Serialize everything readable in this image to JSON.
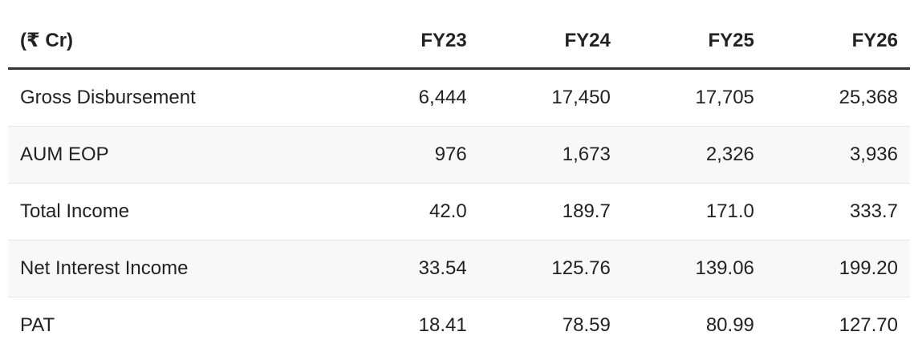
{
  "table": {
    "header": [
      "(₹ Cr)",
      "FY23",
      "FY24",
      "FY25",
      "FY26"
    ],
    "rows": [
      [
        "Gross Disbursement",
        "6,444",
        "17,450",
        "17,705",
        "25,368"
      ],
      [
        "AUM EOP",
        "976",
        "1,673",
        "2,326",
        "3,936"
      ],
      [
        "Total Income",
        "42.0",
        "189.7",
        "171.0",
        "333.7"
      ],
      [
        "Net Interest Income",
        "33.54",
        "125.76",
        "139.06",
        "199.20"
      ],
      [
        "PAT",
        "18.41",
        "78.59",
        "80.99",
        "127.70"
      ]
    ]
  }
}
